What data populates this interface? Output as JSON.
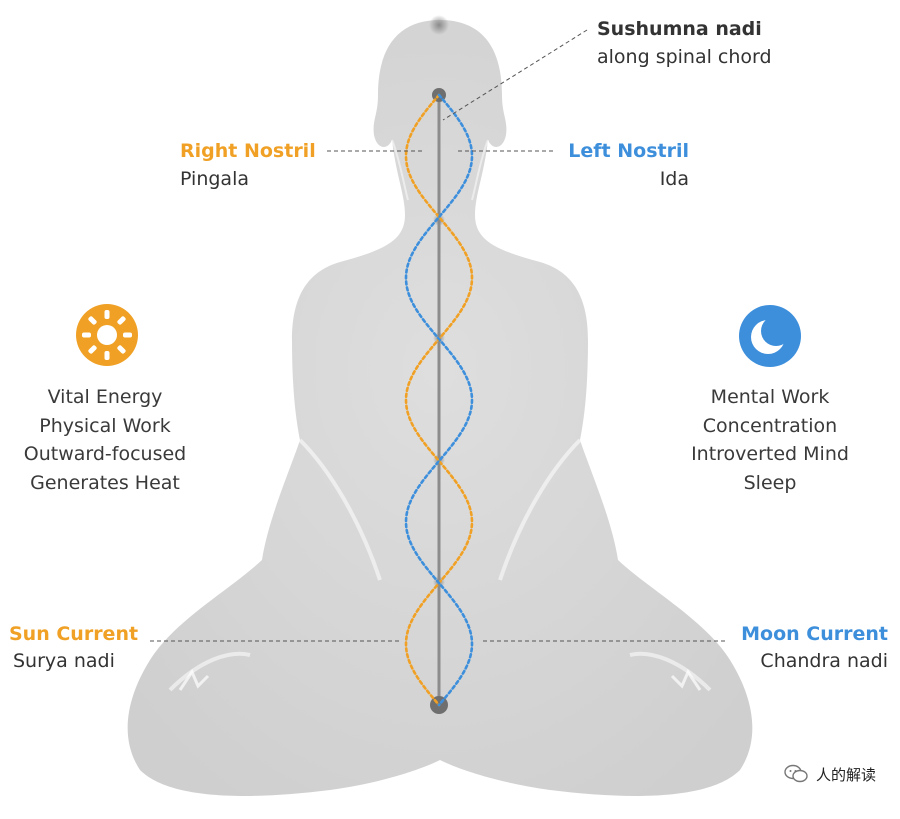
{
  "colors": {
    "orange": "#f0a125",
    "blue": "#3d8fdc",
    "body": "#d9d9d9",
    "text": "#333333"
  },
  "sushumna": {
    "title": "Sushumna nadi",
    "subtitle": "along spinal chord"
  },
  "right_nostril": {
    "title": "Right Nostril",
    "subtitle": "Pingala"
  },
  "left_nostril": {
    "title": "Left Nostril",
    "subtitle": "Ida"
  },
  "sun": {
    "icon": "sun-icon",
    "items": [
      "Vital Energy",
      "Physical Work",
      "Outward-focused",
      "Generates Heat"
    ]
  },
  "moon": {
    "icon": "moon-icon",
    "items": [
      "Mental Work",
      "Concentration",
      "Introverted Mind",
      "Sleep"
    ]
  },
  "sun_current": {
    "title": "Sun Current",
    "subtitle": "Surya nadi"
  },
  "moon_current": {
    "title": "Moon Current",
    "subtitle": "Chandra nadi"
  },
  "watermark": {
    "text": "人的解读",
    "icon": "wechat-icon"
  }
}
